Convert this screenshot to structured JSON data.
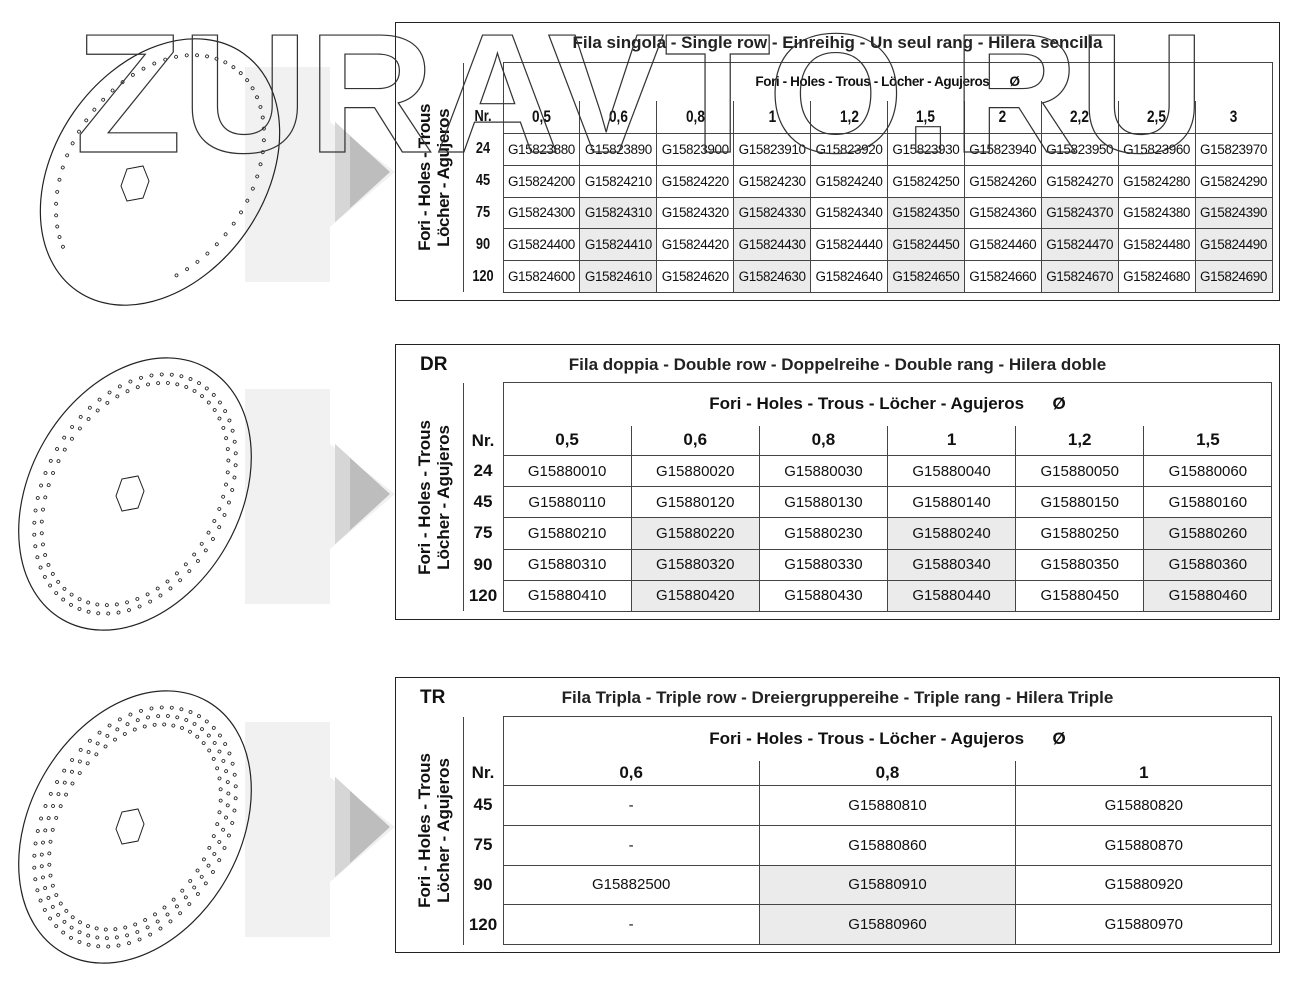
{
  "side_label": [
    "Fori - Holes - Trous",
    "Löcher - Agujeros"
  ],
  "holes_header": "Fori - Holes - Trous - Löcher - Agujeros",
  "diameter_symbol": "Ø",
  "nr_label": "Nr.",
  "watermark": "ZURAVTO.RU",
  "shade_color": "#ebebeb",
  "tables": [
    {
      "code": "",
      "title": "Fila singola - Single row - Einreihig - Un seul rang - Hilera sencilla",
      "columns": [
        "0,5",
        "0,6",
        "0,8",
        "1",
        "1,2",
        "1,5",
        "2",
        "2,2",
        "2,5",
        "3"
      ],
      "shaded_columns": [
        "0,6",
        "1",
        "1,5",
        "2,2",
        "3"
      ],
      "shaded_rows": [
        "75",
        "90",
        "120"
      ],
      "rows": [
        {
          "nr": "24",
          "cells": [
            "G15823880",
            "G15823890",
            "G15823900",
            "G15823910",
            "G15823920",
            "G15823930",
            "G15823940",
            "G15823950",
            "G15823960",
            "G15823970"
          ]
        },
        {
          "nr": "45",
          "cells": [
            "G15824200",
            "G15824210",
            "G15824220",
            "G15824230",
            "G15824240",
            "G15824250",
            "G15824260",
            "G15824270",
            "G15824280",
            "G15824290"
          ]
        },
        {
          "nr": "75",
          "cells": [
            "G15824300",
            "G15824310",
            "G15824320",
            "G15824330",
            "G15824340",
            "G15824350",
            "G15824360",
            "G15824370",
            "G15824380",
            "G15824390"
          ]
        },
        {
          "nr": "90",
          "cells": [
            "G15824400",
            "G15824410",
            "G15824420",
            "G15824430",
            "G15824440",
            "G15824450",
            "G15824460",
            "G15824470",
            "G15824480",
            "G15824490"
          ]
        },
        {
          "nr": "120",
          "cells": [
            "G15824600",
            "G15824610",
            "G15824620",
            "G15824630",
            "G15824640",
            "G15824650",
            "G15824660",
            "G15824670",
            "G15824680",
            "G15824690"
          ]
        }
      ]
    },
    {
      "code": "DR",
      "title": "Fila doppia - Double row - Doppelreihe - Double rang - Hilera doble",
      "columns": [
        "0,5",
        "0,6",
        "0,8",
        "1",
        "1,2",
        "1,5"
      ],
      "shaded_columns": [
        "0,6",
        "1",
        "1,5"
      ],
      "shaded_rows": [
        "75",
        "90",
        "120"
      ],
      "rows": [
        {
          "nr": "24",
          "cells": [
            "G15880010",
            "G15880020",
            "G15880030",
            "G15880040",
            "G15880050",
            "G15880060"
          ]
        },
        {
          "nr": "45",
          "cells": [
            "G15880110",
            "G15880120",
            "G15880130",
            "G15880140",
            "G15880150",
            "G15880160"
          ]
        },
        {
          "nr": "75",
          "cells": [
            "G15880210",
            "G15880220",
            "G15880230",
            "G15880240",
            "G15880250",
            "G15880260"
          ]
        },
        {
          "nr": "90",
          "cells": [
            "G15880310",
            "G15880320",
            "G15880330",
            "G15880340",
            "G15880350",
            "G15880360"
          ]
        },
        {
          "nr": "120",
          "cells": [
            "G15880410",
            "G15880420",
            "G15880430",
            "G15880440",
            "G15880450",
            "G15880460"
          ]
        }
      ]
    },
    {
      "code": "TR",
      "title": "Fila Tripla - Triple row - Dreiergruppereihe - Triple rang - Hilera Triple",
      "columns": [
        "0,6",
        "0,8",
        "1"
      ],
      "shaded_columns": [
        "0,8"
      ],
      "shaded_rows": [
        "90",
        "120"
      ],
      "rows": [
        {
          "nr": "45",
          "cells": [
            "-",
            "G15880810",
            "G15880820"
          ]
        },
        {
          "nr": "75",
          "cells": [
            "-",
            "G15880860",
            "G15880870"
          ]
        },
        {
          "nr": "90",
          "cells": [
            "G15882500",
            "G15880910",
            "G15880920"
          ]
        },
        {
          "nr": "120",
          "cells": [
            "-",
            "G15880960",
            "G15880970"
          ]
        }
      ]
    }
  ]
}
